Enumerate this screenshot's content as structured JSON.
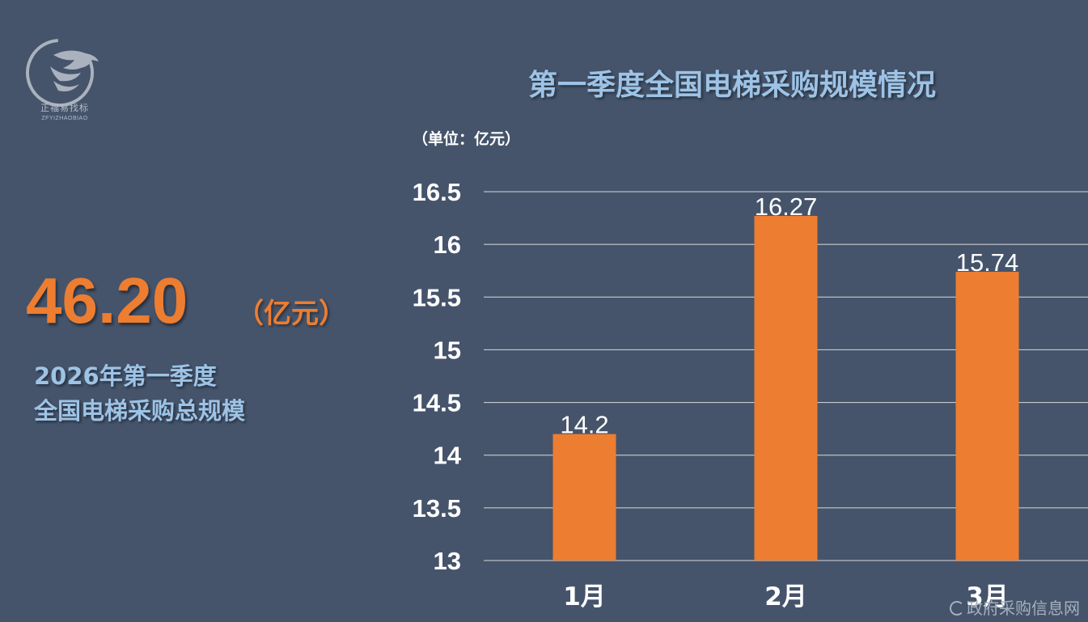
{
  "logo": {
    "name_cn": "正福易找标",
    "name_en": "ZFYIZHAOBIAO",
    "icon": "eagle-logo-icon"
  },
  "summary": {
    "value": "46.20",
    "unit": "（亿元）",
    "caption_line1": "2026年第一季度",
    "caption_line2": "全国电梯采购总规模"
  },
  "chart_data": {
    "type": "bar",
    "title": "第一季度全国电梯采购规模情况",
    "unit_label": "（单位：亿元）",
    "categories": [
      "1月",
      "2月",
      "3月"
    ],
    "values": [
      14.2,
      16.27,
      15.74
    ],
    "value_labels": [
      "14.2",
      "16.27",
      "15.74"
    ],
    "ylim": [
      13,
      16.5
    ],
    "yticks": [
      "13",
      "13.5",
      "14",
      "14.5",
      "15",
      "15.5",
      "16",
      "16.5"
    ],
    "grid": true,
    "legend": "none",
    "bar_color": "#ed7d31"
  },
  "watermark": {
    "text": "政府采购信息网"
  },
  "colors": {
    "background": "#45546b",
    "accent": "#ed7d31",
    "title": "#9dc3e6",
    "gridline": "#d9d9d9"
  }
}
